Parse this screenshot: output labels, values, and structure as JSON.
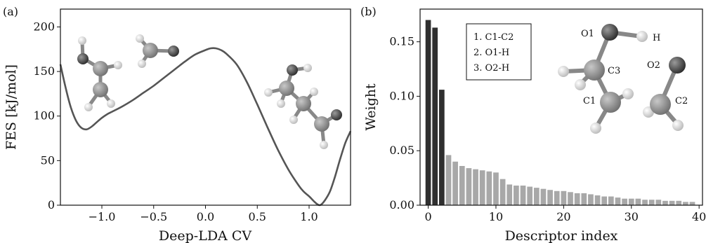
{
  "panel_a_label": "(a)",
  "panel_b_label": "(b)",
  "chart_data": [
    {
      "type": "line",
      "xlabel": "Deep-LDA CV",
      "ylabel": "FES [kJ/mol]",
      "xlim": [
        -1.4,
        1.4
      ],
      "ylim": [
        0,
        220
      ],
      "xticks": [
        -1.0,
        -0.5,
        0.0,
        0.5,
        1.0
      ],
      "xtick_labels": [
        "−1.0",
        "−0.5",
        "0.0",
        "0.5",
        "1.0"
      ],
      "yticks": [
        0,
        50,
        100,
        150,
        200
      ],
      "ytick_labels": [
        "0",
        "50",
        "100",
        "150",
        "200"
      ],
      "line_color": "#555555",
      "series": [
        {
          "x": [
            -1.4,
            -1.35,
            -1.3,
            -1.25,
            -1.2,
            -1.15,
            -1.1,
            -1.05,
            -1.0,
            -0.95,
            -0.9,
            -0.8,
            -0.7,
            -0.6,
            -0.5,
            -0.4,
            -0.3,
            -0.2,
            -0.1,
            0.0,
            0.05,
            0.1,
            0.15,
            0.2,
            0.3,
            0.4,
            0.5,
            0.6,
            0.7,
            0.8,
            0.9,
            0.95,
            1.0,
            1.05,
            1.08,
            1.1,
            1.12,
            1.15,
            1.2,
            1.25,
            1.3,
            1.35,
            1.4
          ],
          "y": [
            158,
            132,
            110,
            95,
            87,
            85,
            88,
            93,
            98,
            102,
            105,
            111,
            118,
            126,
            134,
            143,
            152,
            161,
            169,
            174,
            176,
            176,
            174,
            170,
            158,
            138,
            113,
            87,
            62,
            40,
            22,
            15,
            10,
            4,
            1,
            0,
            1,
            5,
            15,
            32,
            52,
            70,
            83
          ]
        }
      ]
    },
    {
      "type": "bar",
      "xlabel": "Descriptor index",
      "ylabel": "Weight",
      "xlim": [
        -1.2,
        40.5
      ],
      "ylim": [
        0,
        0.18
      ],
      "xticks": [
        0,
        10,
        20,
        30,
        40
      ],
      "xtick_labels": [
        "0",
        "10",
        "20",
        "30",
        "40"
      ],
      "yticks": [
        0,
        0.05,
        0.1,
        0.15
      ],
      "ytick_labels": [
        "0.00",
        "0.05",
        "0.10",
        "0.15"
      ],
      "highlight_color": "#2f2f2f",
      "bar_color": "#a8a8a8",
      "highlighted_count": 3,
      "values": [
        0.17,
        0.163,
        0.106,
        0.046,
        0.04,
        0.036,
        0.034,
        0.033,
        0.032,
        0.031,
        0.03,
        0.024,
        0.019,
        0.018,
        0.018,
        0.017,
        0.016,
        0.015,
        0.014,
        0.013,
        0.013,
        0.012,
        0.011,
        0.011,
        0.01,
        0.009,
        0.008,
        0.008,
        0.007,
        0.006,
        0.006,
        0.006,
        0.005,
        0.005,
        0.005,
        0.004,
        0.004,
        0.004,
        0.003,
        0.003
      ],
      "legend": [
        "1. C1-C2",
        "2. O1-H",
        "3. O2-H"
      ],
      "molecule_atom_labels": [
        "O1",
        "H",
        "C3",
        "C1",
        "O2",
        "C2"
      ]
    }
  ]
}
